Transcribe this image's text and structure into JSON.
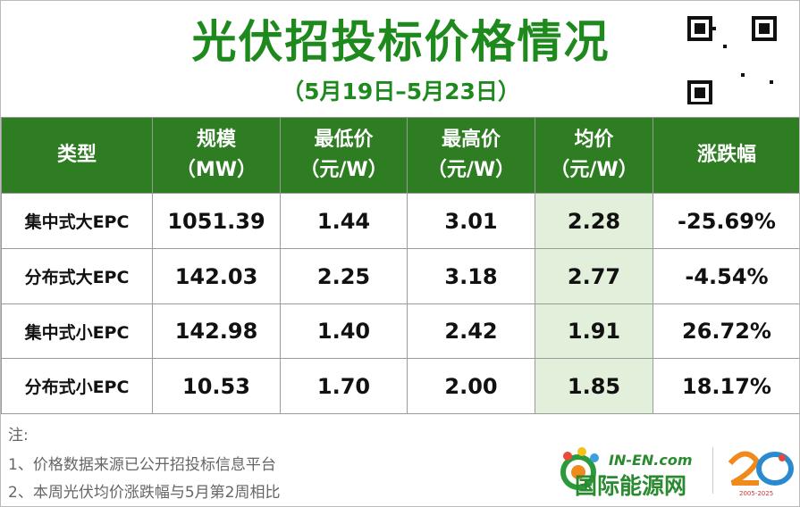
{
  "header": {
    "title": "光伏招投标价格情况",
    "subtitle": "（5月19日–5月23日）"
  },
  "table": {
    "columns": [
      [
        "类型"
      ],
      [
        "规模",
        "（MW）"
      ],
      [
        "最低价",
        "（元/W）"
      ],
      [
        "最高价",
        "（元/W）"
      ],
      [
        "均价",
        "（元/W）"
      ],
      [
        "涨跌幅"
      ]
    ],
    "rows": [
      [
        "集中式大EPC",
        "1051.39",
        "1.44",
        "3.01",
        "2.28",
        "-25.69%"
      ],
      [
        "分布式大EPC",
        "142.03",
        "2.25",
        "3.18",
        "2.77",
        "-4.54%"
      ],
      [
        "集中式小EPC",
        "142.98",
        "1.40",
        "2.42",
        "1.91",
        "26.72%"
      ],
      [
        "分布式小EPC",
        "10.53",
        "1.70",
        "2.00",
        "1.85",
        "18.17%"
      ]
    ]
  },
  "notes": {
    "label": "注:",
    "items": [
      "1、价格数据来源已公开招投标信息平台",
      "2、本周光伏均价涨跌幅与5月第2周相比"
    ]
  },
  "logo": {
    "domain": "IN-EN.com",
    "name": "国际能源网",
    "badge": "2005-2025"
  }
}
